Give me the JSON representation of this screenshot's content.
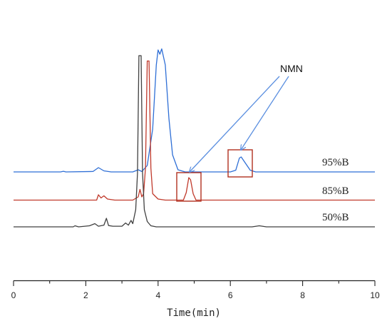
{
  "chart_data": {
    "type": "line",
    "xlabel": "Time(min)",
    "ylabel": "",
    "xlim": [
      0,
      10
    ],
    "x_ticks": [
      "0",
      "2",
      "4",
      "6",
      "8",
      "10"
    ],
    "grid": false,
    "series": [
      {
        "name": "95%B",
        "color": "#2f6fd6",
        "points": [
          [
            0,
            0
          ],
          [
            1.3,
            0
          ],
          [
            1.38,
            0.03
          ],
          [
            1.45,
            0
          ],
          [
            2.2,
            0.02
          ],
          [
            2.35,
            0.2
          ],
          [
            2.5,
            0.05
          ],
          [
            2.7,
            0
          ],
          [
            3.3,
            0
          ],
          [
            3.45,
            0.1
          ],
          [
            3.55,
            0.02
          ],
          [
            3.7,
            0.3
          ],
          [
            3.85,
            2
          ],
          [
            3.95,
            5
          ],
          [
            4.0,
            5.7
          ],
          [
            4.05,
            5.5
          ],
          [
            4.1,
            5.75
          ],
          [
            4.2,
            5
          ],
          [
            4.3,
            2.5
          ],
          [
            4.4,
            0.8
          ],
          [
            4.55,
            0.1
          ],
          [
            4.75,
            0
          ],
          [
            6.0,
            0
          ],
          [
            6.15,
            0.08
          ],
          [
            6.25,
            0.65
          ],
          [
            6.3,
            0.7
          ],
          [
            6.4,
            0.45
          ],
          [
            6.55,
            0.08
          ],
          [
            6.7,
            0
          ],
          [
            10,
            0
          ]
        ]
      },
      {
        "name": "85%B",
        "color": "#c0392b",
        "points": [
          [
            0,
            0
          ],
          [
            2.3,
            0
          ],
          [
            2.35,
            0.25
          ],
          [
            2.42,
            0.1
          ],
          [
            2.5,
            0.2
          ],
          [
            2.6,
            0.05
          ],
          [
            2.8,
            0
          ],
          [
            3.3,
            0
          ],
          [
            3.45,
            0.15
          ],
          [
            3.5,
            0.5
          ],
          [
            3.55,
            0.15
          ],
          [
            3.6,
            0.3
          ],
          [
            3.65,
            1.5
          ],
          [
            3.7,
            6.5
          ],
          [
            3.75,
            6.5
          ],
          [
            3.8,
            1.5
          ],
          [
            3.85,
            0.3
          ],
          [
            4.0,
            0.05
          ],
          [
            4.2,
            0
          ],
          [
            4.7,
            0
          ],
          [
            4.78,
            0.35
          ],
          [
            4.85,
            1.05
          ],
          [
            4.9,
            0.95
          ],
          [
            4.97,
            0.3
          ],
          [
            5.05,
            0
          ],
          [
            10,
            0
          ]
        ]
      },
      {
        "name": "50%B",
        "color": "#404040",
        "points": [
          [
            0,
            0
          ],
          [
            1.65,
            0
          ],
          [
            1.7,
            0.05
          ],
          [
            1.8,
            0
          ],
          [
            2.1,
            0.05
          ],
          [
            2.25,
            0.15
          ],
          [
            2.35,
            0.03
          ],
          [
            2.5,
            0.08
          ],
          [
            2.57,
            0.4
          ],
          [
            2.63,
            0.06
          ],
          [
            2.75,
            0.03
          ],
          [
            3.0,
            0.03
          ],
          [
            3.1,
            0.18
          ],
          [
            3.18,
            0.08
          ],
          [
            3.25,
            0.3
          ],
          [
            3.3,
            0.15
          ],
          [
            3.38,
            0.8
          ],
          [
            3.43,
            2.5
          ],
          [
            3.47,
            8
          ],
          [
            3.53,
            8
          ],
          [
            3.57,
            2.5
          ],
          [
            3.62,
            0.8
          ],
          [
            3.7,
            0.25
          ],
          [
            3.8,
            0.05
          ],
          [
            3.95,
            0
          ],
          [
            6.6,
            0
          ],
          [
            6.8,
            0.05
          ],
          [
            7.0,
            0
          ],
          [
            10,
            0
          ]
        ]
      }
    ],
    "annotations": [
      {
        "text": "NMN",
        "targets": [
          "85%B peak",
          "95%B peak"
        ],
        "box_color": "#b03020"
      }
    ]
  }
}
